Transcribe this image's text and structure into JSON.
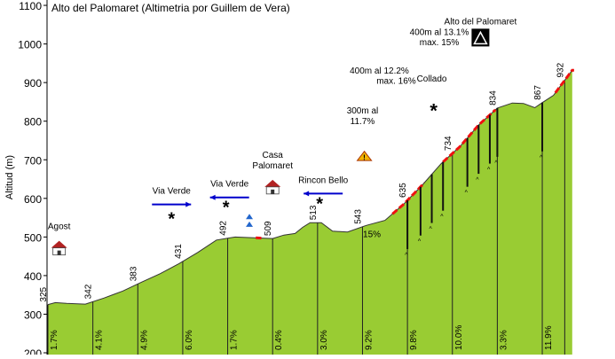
{
  "chart_data": {
    "type": "area",
    "title": "Alto del Palomaret (Altimetria por Guillem de Vera)",
    "ylabel": "Altitud (m)",
    "xlabel": "",
    "ylim": [
      200,
      1100
    ],
    "yticks": [
      200,
      300,
      400,
      500,
      600,
      700,
      800,
      900,
      1000,
      1100
    ],
    "grid": false,
    "fill_color": "#99cc33",
    "line_color": "#333333",
    "steep_color": "#ee1111",
    "profile_x": [
      0,
      0.2,
      0.5,
      1,
      1.5,
      2,
      2.5,
      3,
      3.5,
      4,
      4.5,
      5,
      5.5,
      6,
      6.3,
      6.6,
      6.8,
      7,
      7.3,
      7.6,
      8,
      8.5,
      9,
      9.5,
      10,
      10.5,
      11,
      11.5,
      12,
      12.4,
      12.7,
      13,
      13.2,
      13.5,
      14
    ],
    "profile_y": [
      325,
      330,
      328,
      326,
      342,
      360,
      383,
      405,
      431,
      460,
      492,
      500,
      498,
      496,
      505,
      509,
      525,
      537,
      537,
      515,
      513,
      530,
      543,
      585,
      635,
      690,
      734,
      790,
      834,
      847,
      846,
      835,
      848,
      867,
      932
    ],
    "km_markers": [
      {
        "km": 0,
        "alt": "325",
        "grad": "1.7%"
      },
      {
        "km": 1,
        "alt": "342",
        "grad": "4.1%"
      },
      {
        "km": 2,
        "alt": "383",
        "grad": "4.9%"
      },
      {
        "km": 3,
        "alt": "431",
        "grad": "6.0%"
      },
      {
        "km": 4,
        "alt": "492",
        "grad": "1.7%"
      },
      {
        "km": 5,
        "alt": "509",
        "grad": "0.4%"
      },
      {
        "km": 6,
        "alt": "513",
        "grad": "3.0%"
      },
      {
        "km": 7,
        "alt": "543",
        "grad": "9.2%"
      },
      {
        "km": 8,
        "alt": "635",
        "grad": "9.8%"
      },
      {
        "km": 9,
        "alt": "734",
        "grad": "10.0%"
      },
      {
        "km": 10,
        "alt": "834",
        "grad": "3.3%"
      },
      {
        "km": 11,
        "alt": "867",
        "grad": "11.9%"
      },
      {
        "km": 11.5,
        "alt": "932",
        "grad": ""
      }
    ],
    "steep_segments": [
      [
        5.55,
        5.7
      ],
      [
        9.2,
        10.05
      ],
      [
        10.55,
        11.95
      ],
      [
        13.55,
        14.05
      ]
    ],
    "spikes": [
      9.6,
      9.95,
      10.25,
      10.55,
      11.2,
      11.5,
      11.8,
      12.0,
      13.2
    ],
    "annotations": [
      {
        "text": "Agost",
        "km": 0.3,
        "alt": 520,
        "icon": "house"
      },
      {
        "text": "Via Verde",
        "km": 3.3,
        "alt": 612,
        "icon": "arrow-right"
      },
      {
        "text": "Via Verde",
        "km": 4.85,
        "alt": 630,
        "icon": "arrow-left"
      },
      {
        "text": "Casa",
        "km": 6.0,
        "alt": 705,
        "icon": ""
      },
      {
        "text": "Palomaret",
        "km": 6.0,
        "alt": 678,
        "icon": "house"
      },
      {
        "text": "Rincon Bello",
        "km": 7.35,
        "alt": 640,
        "icon": "arrow-left"
      },
      {
        "text": "15%",
        "km": 8.65,
        "alt": 500,
        "icon": ""
      },
      {
        "text": "300m al",
        "km": 8.4,
        "alt": 820,
        "icon": ""
      },
      {
        "text": "11.7%",
        "km": 8.4,
        "alt": 792,
        "icon": ""
      },
      {
        "text": "400m al 12.2%",
        "km": 8.85,
        "alt": 923,
        "icon": ""
      },
      {
        "text": "max. 16%",
        "km": 9.3,
        "alt": 897,
        "icon": ""
      },
      {
        "text": "Collado",
        "km": 10.25,
        "alt": 903,
        "icon": ""
      },
      {
        "text": "400m al 13.1%",
        "km": 10.45,
        "alt": 1023,
        "icon": ""
      },
      {
        "text": "max. 15%",
        "km": 10.45,
        "alt": 997,
        "icon": ""
      },
      {
        "text": "Alto del Palomaret",
        "km": 11.55,
        "alt": 1051,
        "icon": "summit"
      }
    ]
  }
}
